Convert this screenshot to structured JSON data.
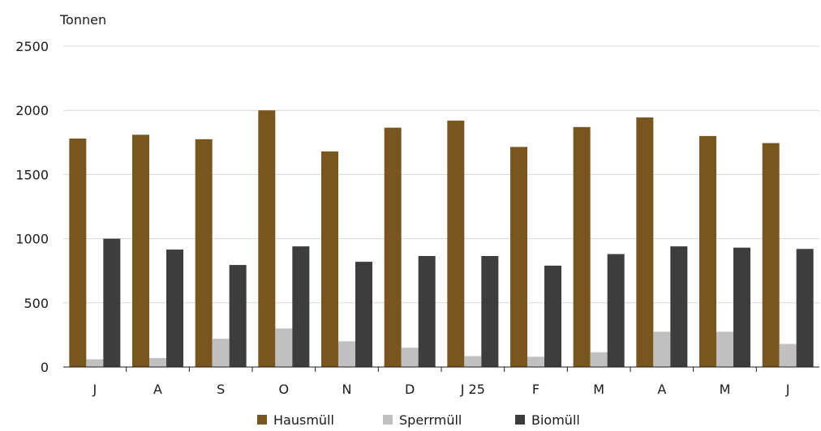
{
  "chart_data": {
    "type": "bar",
    "title": "",
    "ylabel": "Tonnen",
    "xlabel": "",
    "ylim": [
      0,
      2500
    ],
    "yticks": [
      0,
      500,
      1000,
      1500,
      2000,
      2500
    ],
    "grid": true,
    "legend_position": "bottom",
    "categories": [
      "J",
      "A",
      "S",
      "O",
      "N",
      "D",
      "J 25",
      "F",
      "M",
      "A",
      "M",
      "J"
    ],
    "series": [
      {
        "name": "Hausmüll",
        "color": "#7a561f",
        "values": [
          1780,
          1810,
          1775,
          2000,
          1680,
          1865,
          1920,
          1715,
          1870,
          1945,
          1800,
          1745
        ]
      },
      {
        "name": "Sperrmüll",
        "color": "#c0c0c0",
        "values": [
          60,
          70,
          220,
          300,
          200,
          150,
          85,
          80,
          115,
          275,
          275,
          180
        ]
      },
      {
        "name": "Biomüll",
        "color": "#3d3d3d",
        "values": [
          1000,
          915,
          795,
          940,
          820,
          865,
          865,
          790,
          880,
          940,
          930,
          920
        ]
      }
    ]
  }
}
